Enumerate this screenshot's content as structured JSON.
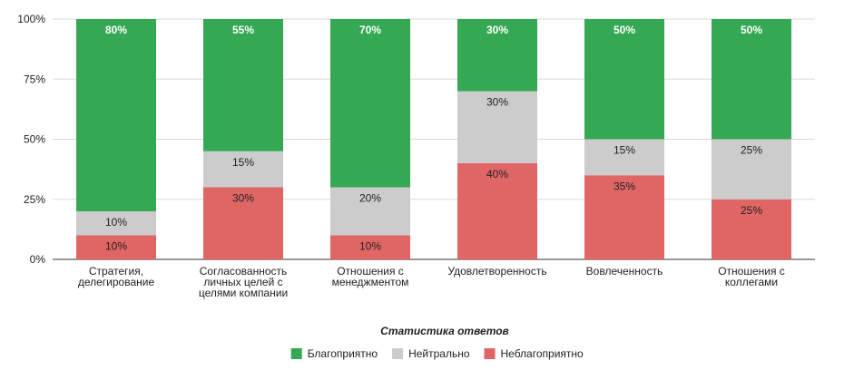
{
  "chart_data": {
    "type": "bar",
    "stacked": true,
    "categories": [
      [
        "Стратегия,",
        "делегирование"
      ],
      [
        "Согласованность",
        "личных целей с",
        "целями компании"
      ],
      [
        "Отношения с",
        "менеджментом"
      ],
      [
        "Удовлетворенность"
      ],
      [
        "Вовлеченность"
      ],
      [
        "Отношения с",
        "коллегами"
      ]
    ],
    "series": [
      {
        "name": "Неблагоприятно",
        "color": "#e06666",
        "values": [
          10,
          30,
          10,
          40,
          35,
          25
        ],
        "labels": [
          "10%",
          "30%",
          "10%",
          "40%",
          "35%",
          "25%"
        ]
      },
      {
        "name": "Нейтрально",
        "color": "#cccccc",
        "values": [
          10,
          15,
          20,
          30,
          15,
          25
        ],
        "labels": [
          "10%",
          "15%",
          "20%",
          "30%",
          "15%",
          "25%"
        ]
      },
      {
        "name": "Благоприятно",
        "color": "#34a853",
        "values": [
          80,
          55,
          70,
          30,
          50,
          50
        ],
        "labels": [
          "80%",
          "55%",
          "70%",
          "30%",
          "50%",
          "50%"
        ]
      }
    ],
    "legend_order": [
      "Благоприятно",
      "Нейтрально",
      "Неблагоприятно"
    ],
    "ylim": [
      0,
      100
    ],
    "yticks": [
      0,
      25,
      50,
      75,
      100
    ],
    "ytick_labels": [
      "0%",
      "25%",
      "50%",
      "75%",
      "100%"
    ],
    "xlabel": "Статистика ответов",
    "ylabel": "",
    "title": "",
    "grid": true,
    "legend_position": "bottom"
  }
}
